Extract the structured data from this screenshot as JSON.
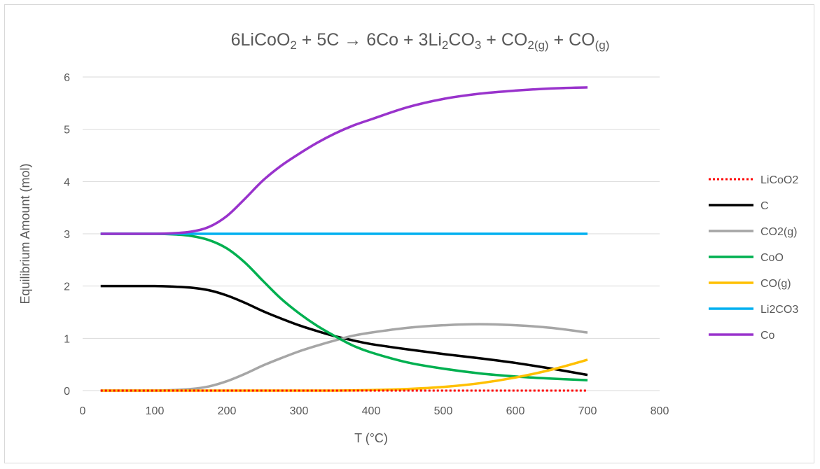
{
  "chart_data": {
    "type": "line",
    "title": {
      "parts": [
        {
          "t": "6LiCoO",
          "sub": false
        },
        {
          "t": "2",
          "sub": true
        },
        {
          "t": " + 5C → 6Co + 3Li",
          "sub": false
        },
        {
          "t": "2",
          "sub": true
        },
        {
          "t": "CO",
          "sub": false
        },
        {
          "t": "3",
          "sub": true
        },
        {
          "t": " + CO",
          "sub": false
        },
        {
          "t": "2(g)",
          "sub": true
        },
        {
          "t": " + CO",
          "sub": false
        },
        {
          "t": "(g)",
          "sub": true
        }
      ]
    },
    "xlabel": "T (°C)",
    "ylabel": "Equilibrium Amount (mol)",
    "xlim": [
      0,
      800
    ],
    "ylim": [
      0,
      6
    ],
    "xticks": [
      "0",
      "100",
      "200",
      "300",
      "400",
      "500",
      "600",
      "700",
      "800"
    ],
    "yticks": [
      "0",
      "1",
      "2",
      "3",
      "4",
      "5",
      "6"
    ],
    "grid": "horizontal",
    "legend_position": "right",
    "series": [
      {
        "name": "LiCoO2",
        "color": "#ff0000",
        "dash": "dotted",
        "x": [
          25,
          100,
          200,
          300,
          400,
          500,
          600,
          700
        ],
        "y": [
          0,
          0,
          0,
          0,
          0,
          0,
          0,
          0
        ]
      },
      {
        "name": "C",
        "color": "#000000",
        "dash": "solid",
        "x": [
          25,
          50,
          100,
          125,
          150,
          175,
          200,
          225,
          250,
          275,
          300,
          325,
          350,
          375,
          400,
          450,
          500,
          550,
          600,
          650,
          700
        ],
        "y": [
          2,
          2,
          2,
          1.99,
          1.97,
          1.92,
          1.82,
          1.68,
          1.52,
          1.38,
          1.25,
          1.14,
          1.04,
          0.96,
          0.89,
          0.79,
          0.7,
          0.62,
          0.53,
          0.42,
          0.3
        ]
      },
      {
        "name": "CO2(g)",
        "color": "#a6a6a6",
        "dash": "solid",
        "x": [
          25,
          100,
          125,
          150,
          175,
          200,
          225,
          250,
          275,
          300,
          325,
          350,
          375,
          400,
          450,
          500,
          550,
          600,
          650,
          700
        ],
        "y": [
          0,
          0,
          0.01,
          0.03,
          0.08,
          0.18,
          0.32,
          0.48,
          0.62,
          0.75,
          0.86,
          0.96,
          1.05,
          1.11,
          1.2,
          1.25,
          1.27,
          1.25,
          1.2,
          1.11
        ]
      },
      {
        "name": "CoO",
        "color": "#00b050",
        "dash": "solid",
        "x": [
          25,
          50,
          100,
          125,
          150,
          175,
          200,
          225,
          250,
          275,
          300,
          325,
          350,
          375,
          400,
          450,
          500,
          550,
          600,
          650,
          700
        ],
        "y": [
          3,
          3,
          3,
          2.99,
          2.96,
          2.88,
          2.72,
          2.45,
          2.1,
          1.76,
          1.48,
          1.24,
          1.04,
          0.86,
          0.73,
          0.54,
          0.42,
          0.33,
          0.27,
          0.23,
          0.2
        ]
      },
      {
        "name": "CO(g)",
        "color": "#ffc000",
        "dash": "solid",
        "x": [
          25,
          100,
          200,
          300,
          350,
          400,
          450,
          500,
          550,
          600,
          650,
          700
        ],
        "y": [
          0,
          0,
          0,
          0,
          0,
          0.01,
          0.03,
          0.07,
          0.14,
          0.25,
          0.4,
          0.59
        ]
      },
      {
        "name": "Li2CO3",
        "color": "#00b0f0",
        "dash": "solid",
        "x": [
          25,
          100,
          200,
          300,
          400,
          500,
          600,
          700
        ],
        "y": [
          3,
          3,
          3,
          3,
          3,
          3,
          3,
          3
        ]
      },
      {
        "name": "Co",
        "color": "#9933cc",
        "dash": "solid",
        "x": [
          25,
          50,
          100,
          125,
          150,
          175,
          200,
          225,
          250,
          275,
          300,
          325,
          350,
          375,
          400,
          450,
          500,
          550,
          600,
          650,
          700
        ],
        "y": [
          3,
          3,
          3,
          3.01,
          3.04,
          3.13,
          3.34,
          3.67,
          4.02,
          4.3,
          4.53,
          4.74,
          4.92,
          5.07,
          5.19,
          5.42,
          5.58,
          5.68,
          5.74,
          5.78,
          5.8
        ]
      }
    ]
  }
}
